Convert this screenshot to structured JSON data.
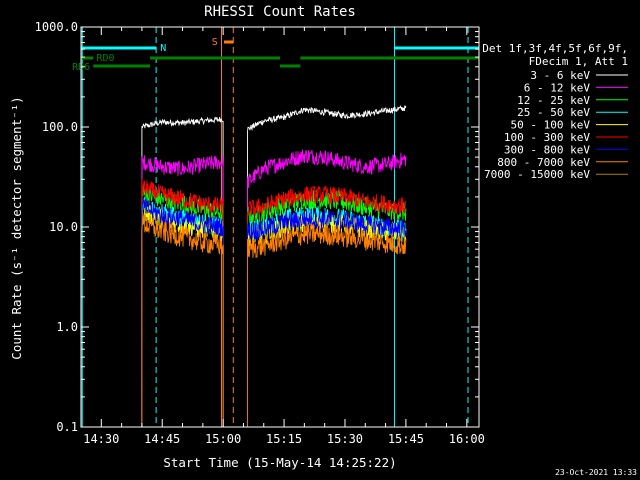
{
  "chart_data": {
    "type": "line",
    "title": "RHESSI Count Rates",
    "xlabel": "Start Time (15-May-14 14:25:22)",
    "ylabel": "Count Rate (s⁻¹ detector segment⁻¹)",
    "y_scale": "log",
    "ylim": [
      0.1,
      1000.0
    ],
    "xlim": [
      "14:25",
      "16:03"
    ],
    "x_ticks": [
      "14:30",
      "14:45",
      "15:00",
      "15:15",
      "15:30",
      "15:45",
      "16:00"
    ],
    "y_ticks": [
      "0.1",
      "1.0",
      "10.0",
      "100.0",
      "1000.0"
    ],
    "grid": false,
    "legend_header": [
      "Det 1f,3f,4f,5f,6f,9f,",
      "FDecim 1, Att 1"
    ],
    "legend_position": "right",
    "data_gap": [
      "15:00",
      "15:06"
    ],
    "series": [
      {
        "name": "3 - 6 keV",
        "color": "#ffffff",
        "x": [
          "14:40",
          "14:45",
          "14:50",
          "14:55",
          "15:00",
          "15:06",
          "15:10",
          "15:15",
          "15:20",
          "15:25",
          "15:30",
          "15:35",
          "15:40",
          "15:45"
        ],
        "values": [
          100,
          112,
          110,
          115,
          120,
          95,
          115,
          125,
          150,
          140,
          130,
          135,
          145,
          155
        ]
      },
      {
        "name": "6 - 12 keV",
        "color": "#ff00ff",
        "x": [
          "14:40",
          "14:45",
          "14:50",
          "14:55",
          "15:00",
          "15:06",
          "15:10",
          "15:15",
          "15:20",
          "15:25",
          "15:30",
          "15:35",
          "15:40",
          "15:45"
        ],
        "values": [
          45,
          40,
          38,
          42,
          45,
          28,
          38,
          45,
          52,
          50,
          44,
          40,
          42,
          48
        ]
      },
      {
        "name": "12 - 25 keV",
        "color": "#00ff00",
        "x": [
          "14:40",
          "14:45",
          "14:50",
          "14:55",
          "15:00",
          "15:06",
          "15:10",
          "15:15",
          "15:20",
          "15:25",
          "15:30",
          "15:35",
          "15:40",
          "15:45"
        ],
        "values": [
          22,
          19,
          17,
          15,
          14,
          13,
          14,
          17,
          19,
          19,
          18,
          16,
          15,
          14
        ]
      },
      {
        "name": "25 - 50 keV",
        "color": "#00ffff",
        "x": [
          "14:40",
          "14:45",
          "14:50",
          "14:55",
          "15:00",
          "15:06",
          "15:10",
          "15:15",
          "15:20",
          "15:25",
          "15:30",
          "15:35",
          "15:40",
          "15:45"
        ],
        "values": [
          16,
          14,
          12,
          11,
          10,
          9,
          10,
          12,
          13,
          13,
          12,
          11,
          10,
          9
        ]
      },
      {
        "name": "50 - 100 keV",
        "color": "#ffff00",
        "x": [
          "14:40",
          "14:45",
          "14:50",
          "14:55",
          "15:00",
          "15:06",
          "15:10",
          "15:15",
          "15:20",
          "15:25",
          "15:30",
          "15:35",
          "15:40",
          "15:45"
        ],
        "values": [
          14,
          12,
          10.5,
          9.5,
          9,
          8,
          8.5,
          10,
          11,
          11,
          10.5,
          9.5,
          9,
          8.5
        ]
      },
      {
        "name": "100 - 300 keV",
        "color": "#ff0000",
        "x": [
          "14:40",
          "14:45",
          "14:50",
          "14:55",
          "15:00",
          "15:06",
          "15:10",
          "15:15",
          "15:20",
          "15:25",
          "15:30",
          "15:35",
          "15:40",
          "15:45"
        ],
        "values": [
          25,
          21,
          19,
          17,
          16,
          15,
          16,
          19,
          21,
          21,
          20,
          18,
          17,
          16
        ]
      },
      {
        "name": "300 - 800 keV",
        "color": "#0000ff",
        "x": [
          "14:40",
          "14:45",
          "14:50",
          "14:55",
          "15:00",
          "15:06",
          "15:10",
          "15:15",
          "15:20",
          "15:25",
          "15:30",
          "15:35",
          "15:40",
          "15:45"
        ],
        "values": [
          16,
          13,
          12,
          10.5,
          10,
          9,
          9.5,
          11,
          12,
          12,
          11.5,
          10.5,
          10,
          9.5
        ]
      },
      {
        "name": "800 - 7000 keV",
        "color": "#ff8000",
        "x": [
          "14:40",
          "14:45",
          "14:50",
          "14:55",
          "15:00",
          "15:06",
          "15:10",
          "15:15",
          "15:20",
          "15:25",
          "15:30",
          "15:35",
          "15:40",
          "15:45"
        ],
        "values": [
          11,
          9,
          8,
          7,
          6.5,
          6,
          6.5,
          7.5,
          8.5,
          8.5,
          8,
          7.5,
          7,
          6.5
        ]
      },
      {
        "name": "7000 - 15000 keV",
        "color": "#b08000",
        "x": [],
        "values": []
      }
    ],
    "annotations": [
      {
        "label": "RD0",
        "color": "#008000"
      },
      {
        "label": "RD6",
        "color": "#008000"
      },
      {
        "label": "N",
        "color": "#00ffff"
      },
      {
        "label": "S",
        "color": "#ff8000"
      }
    ],
    "timestamp": "23-Oct-2021 13:33"
  }
}
